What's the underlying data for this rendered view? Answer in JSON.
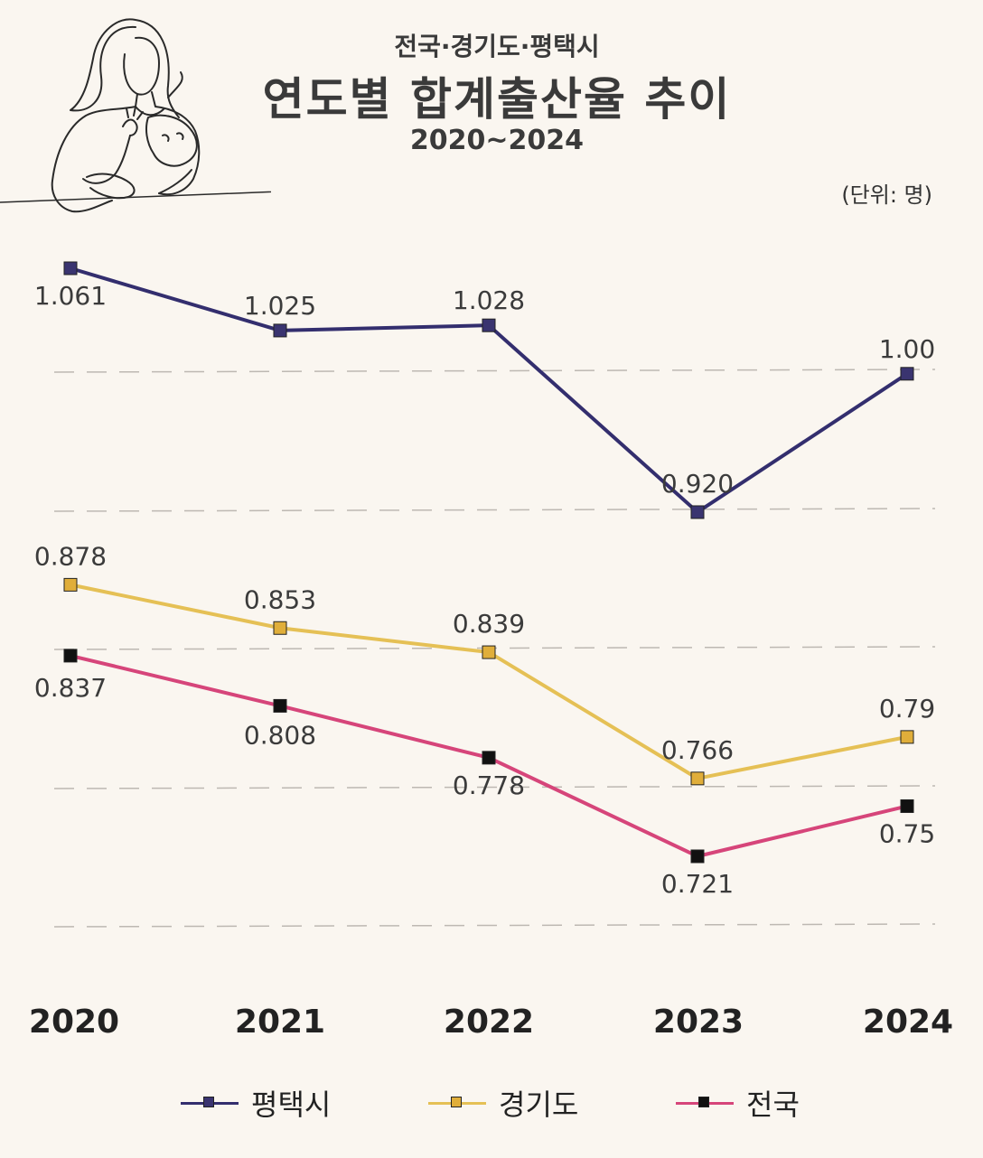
{
  "header": {
    "subtitle": "전국·경기도·평택시",
    "title": "연도별 합계출산율 추이",
    "range": "2020~2024",
    "unit": "(단위: 명)"
  },
  "illustration": {
    "icon": "mother-baby-line-drawing-icon"
  },
  "chart_data": {
    "type": "line",
    "title": "연도별 합계출산율 추이",
    "subtitle": "전국·경기도·평택시",
    "categories": [
      "2020",
      "2021",
      "2022",
      "2023",
      "2024"
    ],
    "ylim": [
      0.63,
      1.1
    ],
    "grid": true,
    "unit": "(단위: 명)",
    "legend_position": "bottom",
    "series": [
      {
        "name": "평택시",
        "key": "pyeongtaek",
        "color": "#332e6e",
        "marker_color": "#3a3470",
        "values": [
          1.061,
          1.025,
          1.028,
          0.92,
          1.0
        ],
        "labels": [
          "1.061",
          "1.025",
          "1.028",
          "0.920",
          "1.00"
        ]
      },
      {
        "name": "경기도",
        "key": "gyeonggi",
        "color": "#e5c055",
        "marker_color": "#e0ae3a",
        "values": [
          0.878,
          0.853,
          0.839,
          0.766,
          0.79
        ],
        "labels": [
          "0.878",
          "0.853",
          "0.839",
          "0.766",
          "0.79"
        ]
      },
      {
        "name": "전국",
        "key": "national",
        "color": "#d6457a",
        "marker_color": "#111111",
        "values": [
          0.837,
          0.808,
          0.778,
          0.721,
          0.75
        ],
        "labels": [
          "0.837",
          "0.808",
          "0.778",
          "0.721",
          "0.75"
        ]
      }
    ]
  }
}
